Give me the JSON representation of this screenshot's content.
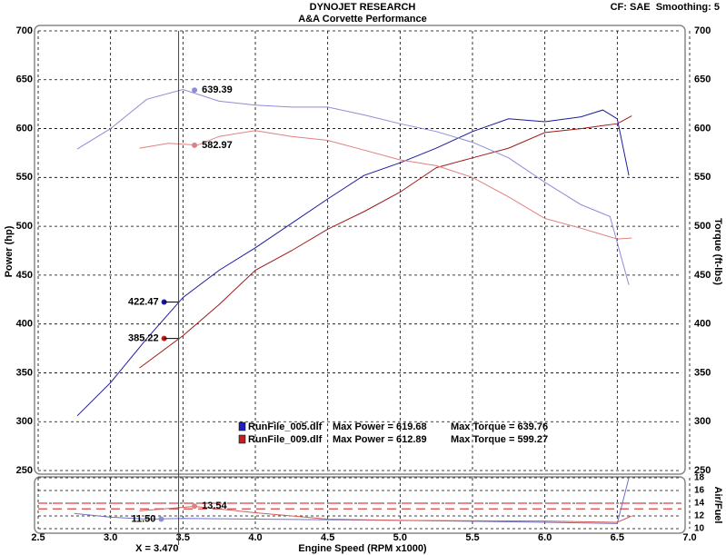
{
  "chart_data": [
    {
      "type": "line",
      "title": "DYNOJET RESEARCH",
      "subtitle": "A&A Corvette Performance",
      "corner_text": "CF: SAE  Smoothing: 5",
      "ylabel": "Power (hp)",
      "y2label": "Torque (ft-lbs)",
      "xlim": [
        2.5,
        7.0
      ],
      "ylim": [
        250,
        700
      ],
      "y2lim": [
        250,
        700
      ],
      "grid": true,
      "yticks": [
        250,
        300,
        350,
        400,
        450,
        500,
        550,
        600,
        650,
        700
      ],
      "y2ticks": [
        250,
        300,
        350,
        400,
        450,
        500,
        550,
        600,
        650,
        700
      ],
      "series": [
        {
          "color": "#1a1aa0",
          "x": [
            2.77,
            3.0,
            3.25,
            3.5,
            3.75,
            4.0,
            4.25,
            4.5,
            4.75,
            5.0,
            5.25,
            5.5,
            5.75,
            6.0,
            6.25,
            6.4,
            6.5,
            6.58
          ],
          "values": [
            306,
            340,
            385,
            427,
            455,
            478,
            503,
            528,
            552,
            565,
            580,
            597,
            610,
            607,
            612,
            619,
            610,
            552
          ]
        },
        {
          "color": "#a01a1a",
          "x": [
            3.2,
            3.5,
            3.75,
            4.0,
            4.25,
            4.5,
            4.75,
            5.0,
            5.25,
            5.5,
            5.75,
            6.0,
            6.25,
            6.4,
            6.5,
            6.6
          ],
          "values": [
            355,
            388,
            420,
            455,
            475,
            497,
            515,
            535,
            560,
            570,
            580,
            596,
            600,
            603,
            605,
            613
          ]
        },
        {
          "color": "#8c8cd8",
          "axis": "y2",
          "x": [
            2.77,
            3.0,
            3.25,
            3.5,
            3.75,
            4.0,
            4.25,
            4.5,
            4.75,
            5.0,
            5.25,
            5.5,
            5.75,
            6.0,
            6.25,
            6.45,
            6.58
          ],
          "values": [
            579,
            600,
            630,
            640,
            628,
            624,
            622,
            622,
            614,
            605,
            597,
            586,
            570,
            545,
            522,
            510,
            440
          ]
        },
        {
          "color": "#e08080",
          "axis": "y2",
          "x": [
            3.2,
            3.4,
            3.6,
            3.75,
            4.0,
            4.25,
            4.5,
            4.75,
            5.0,
            5.25,
            5.5,
            5.75,
            6.0,
            6.25,
            6.5,
            6.6
          ],
          "values": [
            580,
            585,
            583,
            592,
            598,
            592,
            588,
            578,
            568,
            562,
            550,
            530,
            508,
            498,
            487,
            488
          ]
        }
      ],
      "annotations": [
        {
          "x": 3.58,
          "value": 639.39,
          "label": "639.39",
          "color": "#8c8cd8"
        },
        {
          "x": 3.58,
          "value": 582.97,
          "label": "582.97",
          "color": "#e08080"
        },
        {
          "x": 3.37,
          "value": 422.47,
          "label": "422.47",
          "color": "#1a1aa0"
        },
        {
          "x": 3.37,
          "value": 385.22,
          "label": "385.22",
          "color": "#c01a1a"
        }
      ],
      "cursor": {
        "x": 3.47,
        "label": "X = 3.470"
      },
      "legend": [
        {
          "name": "RunFile_005.dlf",
          "color": "#2020c0",
          "power": "Max Power = 619.68",
          "torque": "Max Torque = 639.76"
        },
        {
          "name": "RunFile_009.dlf",
          "color": "#c02020",
          "power": "Max Power = 612.89",
          "torque": "Max Torque = 599.27"
        }
      ]
    },
    {
      "type": "line",
      "xlabel": "Engine Speed (RPM x1000)",
      "y2label": "Air/Fuel",
      "xlim": [
        2.5,
        7.0
      ],
      "y2lim": [
        10,
        18
      ],
      "grid": true,
      "xticks": [
        {
          "value": 2.5,
          "label": "2.5"
        },
        {
          "value": 3,
          "label": "3.0"
        },
        {
          "value": 3.5,
          "label": "3.5"
        },
        {
          "value": 4,
          "label": "4.0"
        },
        {
          "value": 4.5,
          "label": "4.5"
        },
        {
          "value": 5,
          "label": "5.0"
        },
        {
          "value": 5.5,
          "label": "5.5"
        },
        {
          "value": 6,
          "label": "6.0"
        },
        {
          "value": 6.5,
          "label": "6.5"
        },
        {
          "value": 7,
          "label": "7.0"
        }
      ],
      "y2ticks": [
        10,
        12,
        14,
        16,
        18
      ],
      "reference_lines": [
        14.0,
        13.1
      ],
      "series": [
        {
          "color": "#7070c8",
          "axis": "y2",
          "x": [
            2.75,
            3.0,
            3.25,
            3.5,
            4.0,
            5.0,
            6.0,
            6.5,
            6.58
          ],
          "values": [
            12.4,
            11.8,
            11.5,
            11.6,
            11.5,
            11.3,
            11.0,
            10.8,
            18
          ]
        },
        {
          "color": "#d06060",
          "axis": "y2",
          "x": [
            3.2,
            3.58,
            4.0,
            4.5,
            5.0,
            6.0,
            6.5,
            6.6
          ],
          "values": [
            12.8,
            13.5,
            12.5,
            11.5,
            11.3,
            11.2,
            11.0,
            12.0
          ]
        }
      ],
      "annotations": [
        {
          "x": 3.35,
          "value": 11.5,
          "label": "11.50",
          "color": "#8c8cd8"
        },
        {
          "x": 3.58,
          "value": 13.54,
          "label": "13.54",
          "color": "#e08080"
        }
      ]
    }
  ]
}
